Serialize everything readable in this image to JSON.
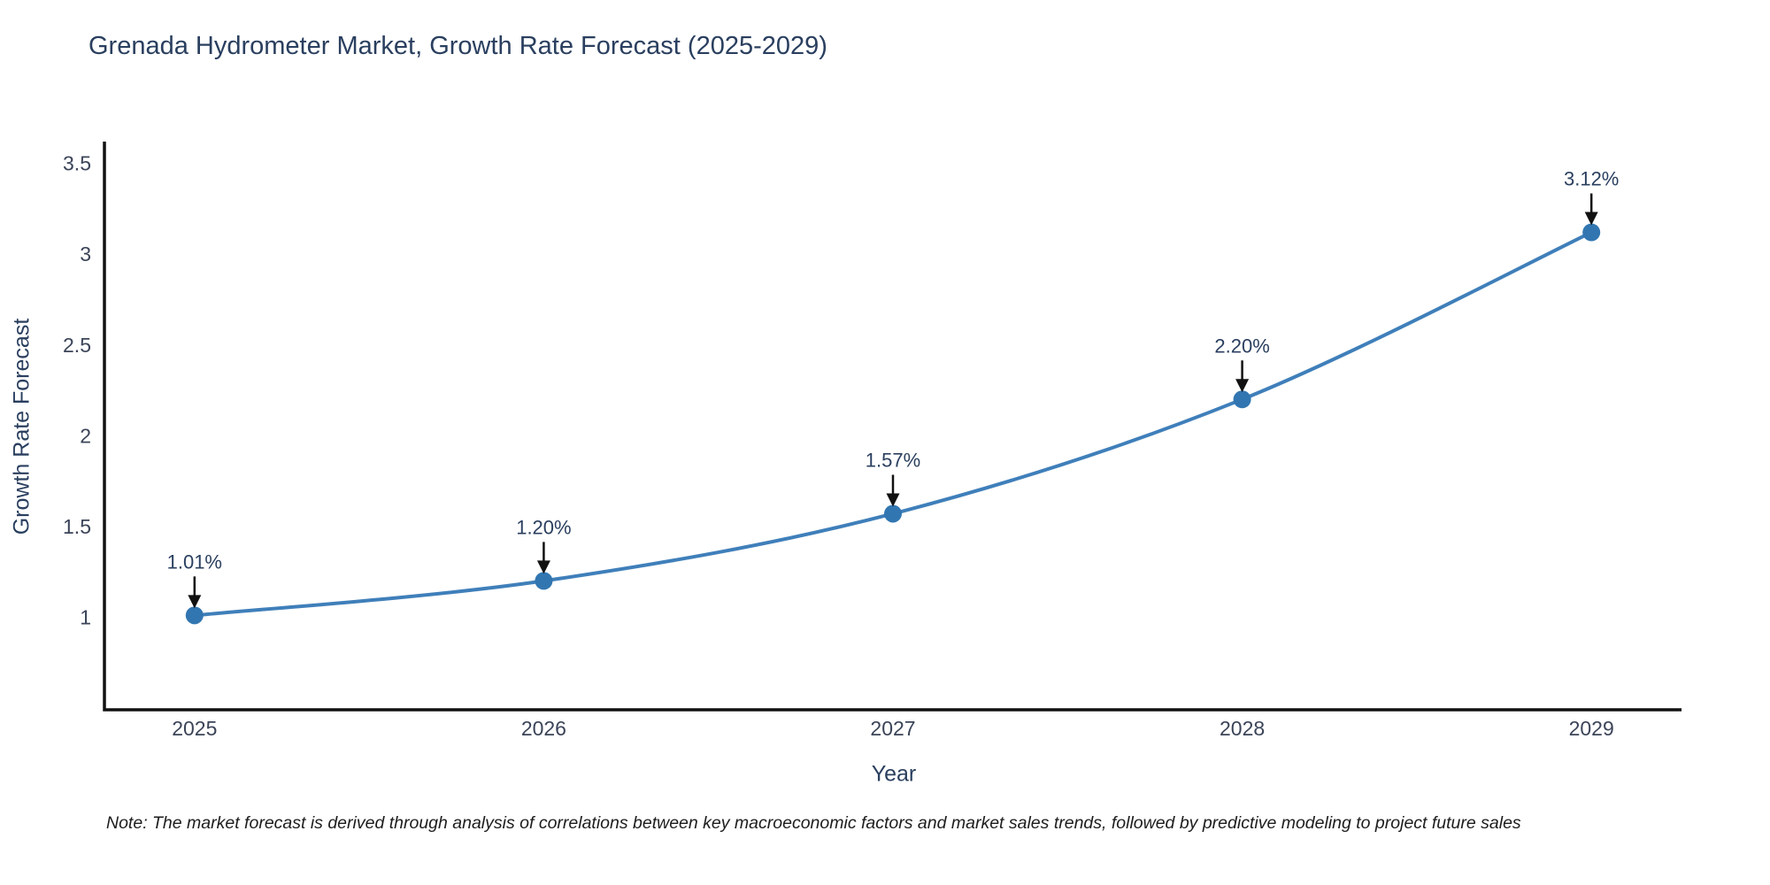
{
  "title": "Grenada Hydrometer Market, Growth Rate Forecast (2025-2029)",
  "note": "Note: The market forecast is derived through analysis of correlations between key macroeconomic factors and market sales trends, followed by predictive modeling to project future sales",
  "chart_data": {
    "type": "line",
    "title": "Grenada Hydrometer Market, Growth Rate Forecast (2025-2029)",
    "xlabel": "Year",
    "ylabel": "Growth Rate Forecast",
    "x": [
      2025,
      2026,
      2027,
      2028,
      2029
    ],
    "series": [
      {
        "name": "Growth Rate Forecast",
        "values": [
          1.01,
          1.2,
          1.57,
          2.2,
          3.12
        ],
        "point_labels": [
          "1.01%",
          "1.20%",
          "1.57%",
          "2.20%",
          "3.12%"
        ]
      }
    ],
    "xtick_labels": [
      "2025",
      "2026",
      "2027",
      "2028",
      "2029"
    ],
    "ytick_values": [
      1,
      1.5,
      2,
      2.5,
      3,
      3.5
    ],
    "ytick_labels": [
      "1",
      "1.5",
      "2",
      "2.5",
      "3",
      "3.5"
    ],
    "xlim": [
      2024.742,
      2029.258
    ],
    "ylim": [
      0.49,
      3.62
    ],
    "grid": false,
    "legend_position": "none",
    "line_shape": "spline",
    "annotations_have_arrows": true,
    "colors": {
      "line": "#3f7fba",
      "marker": "#3276b1",
      "axis": "#111111",
      "title_text": "#2a3f5f",
      "tick_text": "#3b4458",
      "annotation_text": "#2a3f5f",
      "arrow": "#111111",
      "background": "#ffffff"
    }
  }
}
